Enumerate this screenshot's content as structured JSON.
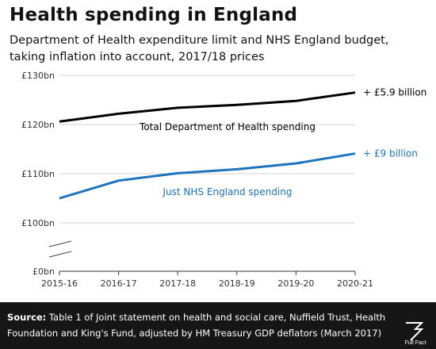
{
  "header": {
    "title": "Health spending in England",
    "subtitle_line1": "Department of Health expenditure limit and NHS England budget,",
    "subtitle_line2": "taking inflation into account, 2017/18 prices"
  },
  "chart_data": {
    "type": "line",
    "title": "Health spending in England",
    "xlabel": "",
    "ylabel": "",
    "categories": [
      "2015-16",
      "2016-17",
      "2017-18",
      "2018-19",
      "2019-20",
      "2020-21"
    ],
    "y_axis": {
      "broken": true,
      "ticks": [
        {
          "label": "£130bn",
          "value": 130
        },
        {
          "label": "£120bn",
          "value": 120
        },
        {
          "label": "£110bn",
          "value": 110
        },
        {
          "label": "£100bn",
          "value": 100
        },
        {
          "label": "£0bn",
          "value": 0
        }
      ],
      "ylim": [
        100,
        130
      ]
    },
    "series": [
      {
        "name": "Total Department of Health spending",
        "color": "#000000",
        "values": [
          120.6,
          122.2,
          123.4,
          124.0,
          124.8,
          126.5
        ],
        "end_label": "+ £5.9 billion",
        "end_label_color": "#000000"
      },
      {
        "name": "Just NHS England spending",
        "color": "#1e73be",
        "values": [
          105.0,
          108.6,
          110.1,
          110.9,
          112.1,
          114.1
        ],
        "end_label": "+ £9 billion",
        "end_label_color": "#1e73be"
      }
    ],
    "grid": true
  },
  "footer": {
    "source_label": "Source:",
    "source_line1": "Table 1 of Joint statement on health and social care, Nuffield Trust, Health",
    "source_line2": "Foundation and King's Fund, adjusted by HM Treasury GDP deflators (March 2017)",
    "brand": "Full Fact"
  }
}
